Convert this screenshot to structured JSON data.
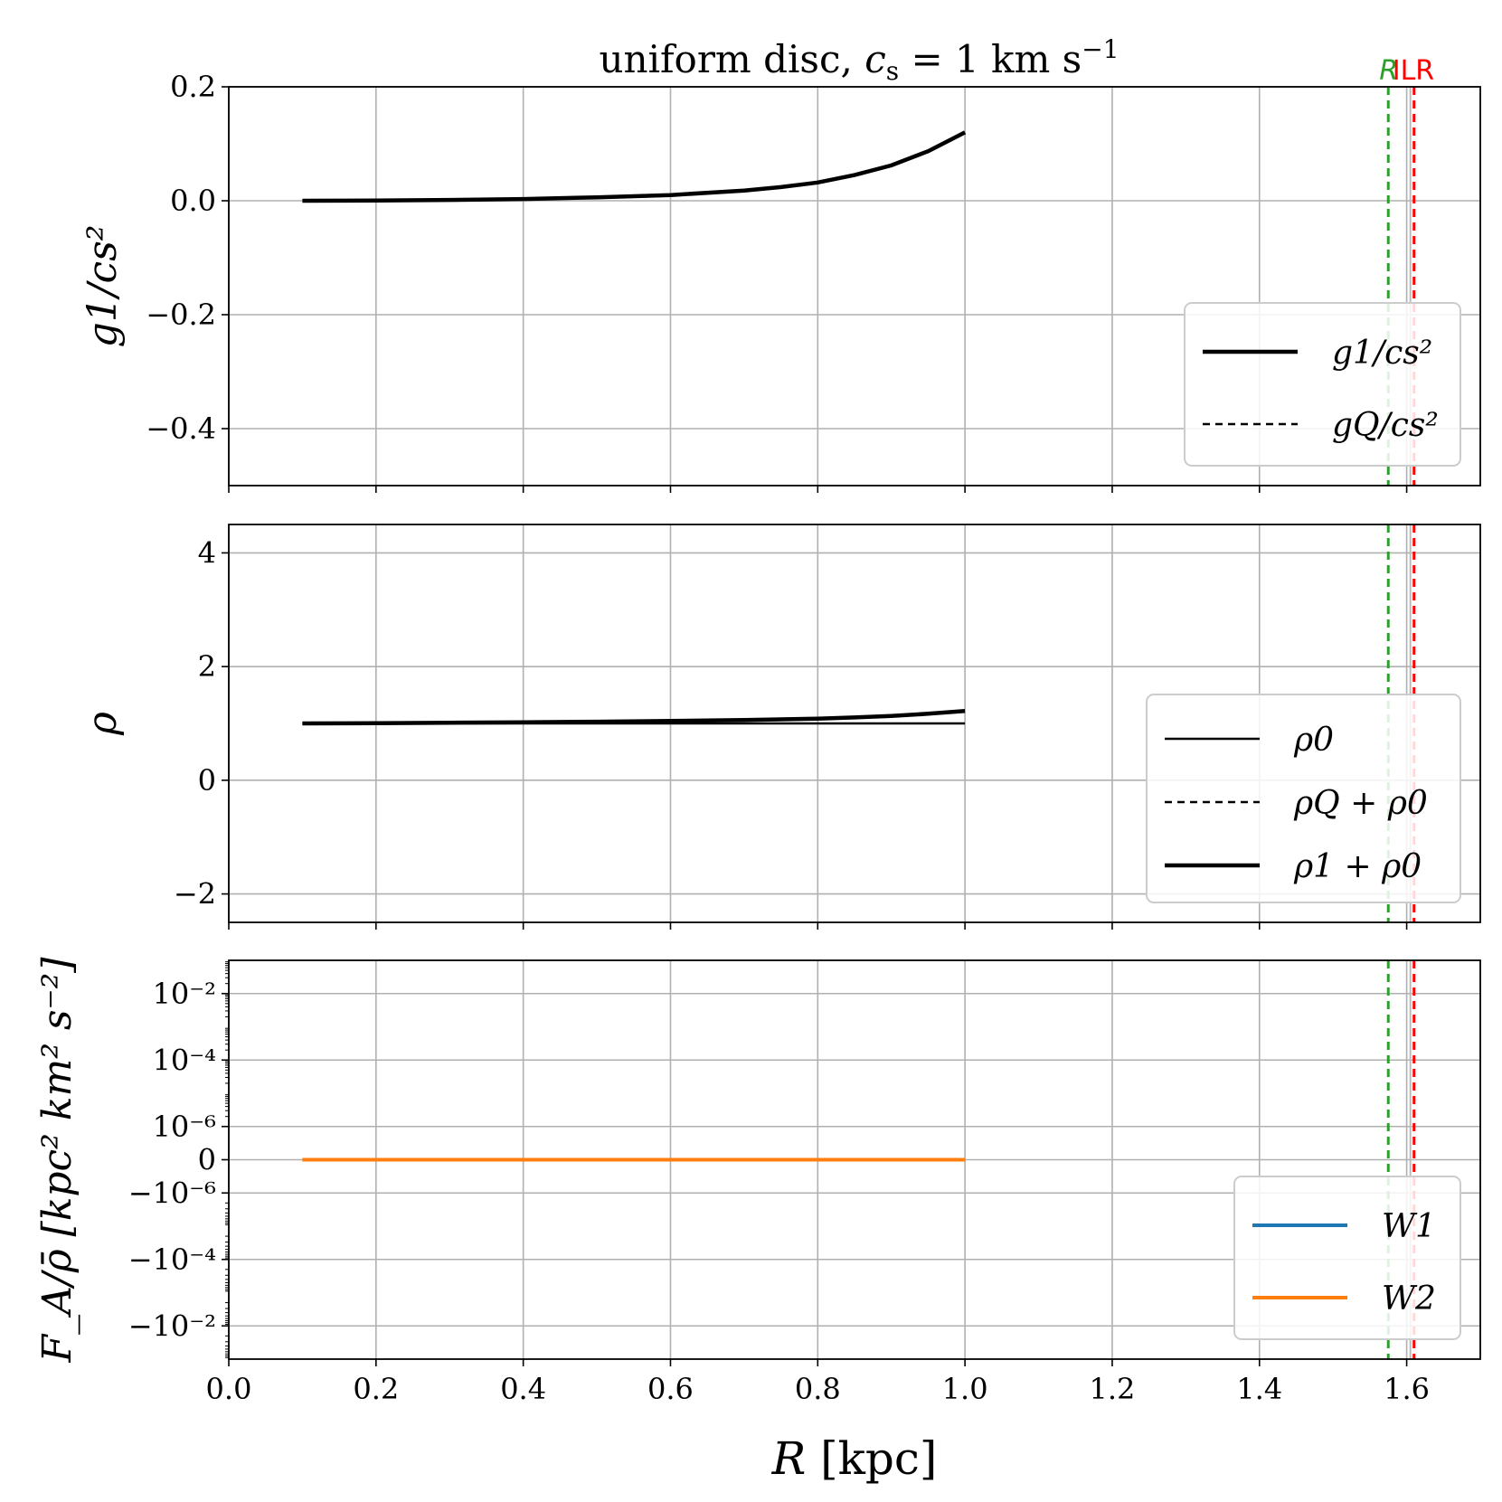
{
  "chart_data": {
    "type": "line",
    "title": "uniform disc, c_s = 1 km s^-1",
    "xlabel": "R [kpc]",
    "xlim": [
      0.0,
      1.7
    ],
    "xticks": [
      "0.0",
      "0.2",
      "0.4",
      "0.6",
      "0.8",
      "1.0",
      "1.2",
      "1.4",
      "1.6"
    ],
    "xtick_values": [
      0.0,
      0.2,
      0.4,
      0.6,
      0.8,
      1.0,
      1.2,
      1.4,
      1.6
    ],
    "resonances": [
      {
        "label": "R",
        "x": 1.575,
        "color": "#2ca02c",
        "style": "dashed"
      },
      {
        "label": "ILR",
        "x": 1.61,
        "color": "#ff0000",
        "style": "dashed"
      },
      {
        "label": "",
        "x": 1.605,
        "color": "#bbbbbb",
        "style": "solid"
      }
    ],
    "panels": [
      {
        "name": "g1",
        "ylabel": "g1/cs²",
        "ylim": [
          -0.5,
          0.2
        ],
        "yticks": [
          "0.2",
          "0.0",
          "−0.2",
          "−0.4"
        ],
        "ytick_values": [
          0.2,
          0.0,
          -0.2,
          -0.4
        ],
        "legend": {
          "position": "lower-right",
          "entries": [
            {
              "label": "g1/cs²",
              "style": "solid-thick"
            },
            {
              "label": "gQ/cs²",
              "style": "dashed"
            }
          ]
        },
        "series": [
          {
            "name": "g1/cs²",
            "style": "solid-thick",
            "color": "#000000",
            "x": [
              0.1,
              0.2,
              0.3,
              0.4,
              0.5,
              0.6,
              0.7,
              0.75,
              0.8,
              0.85,
              0.9,
              0.95,
              1.0
            ],
            "y": [
              0.0,
              0.0005,
              0.0015,
              0.003,
              0.006,
              0.01,
              0.018,
              0.024,
              0.032,
              0.045,
              0.062,
              0.087,
              0.12
            ]
          }
        ]
      },
      {
        "name": "rho",
        "ylabel": "ρ",
        "ylim": [
          -2.5,
          4.5
        ],
        "yticks": [
          "4",
          "2",
          "0",
          "−2"
        ],
        "ytick_values": [
          4,
          2,
          0,
          -2
        ],
        "legend": {
          "position": "lower-right",
          "entries": [
            {
              "label": "ρ0",
              "style": "solid"
            },
            {
              "label": "ρQ + ρ0",
              "style": "dashed"
            },
            {
              "label": "ρ1 + ρ0",
              "style": "solid-thick"
            }
          ]
        },
        "series": [
          {
            "name": "ρ0",
            "style": "solid",
            "color": "#000000",
            "x": [
              0.1,
              1.0
            ],
            "y": [
              1.0,
              1.0
            ]
          },
          {
            "name": "ρ1 + ρ0",
            "style": "solid-thick",
            "color": "#000000",
            "x": [
              0.1,
              0.2,
              0.3,
              0.4,
              0.5,
              0.6,
              0.7,
              0.8,
              0.85,
              0.9,
              0.95,
              1.0
            ],
            "y": [
              1.0,
              1.005,
              1.012,
              1.02,
              1.03,
              1.043,
              1.06,
              1.085,
              1.105,
              1.13,
              1.17,
              1.22
            ]
          }
        ]
      },
      {
        "name": "flux",
        "ylabel": "F_A/ρ̄  [kpc² km² s⁻²]",
        "yscale": "symlog",
        "yticks": [
          "10⁻²",
          "10⁻⁴",
          "10⁻⁶",
          "0",
          "−10⁻⁶",
          "−10⁻⁴",
          "−10⁻²"
        ],
        "ytick_values": [
          0.01,
          0.0001,
          1e-06,
          0,
          -1e-06,
          -0.0001,
          -0.01
        ],
        "legend": {
          "position": "lower-right",
          "entries": [
            {
              "label": "W1",
              "style": "solid",
              "color": "#1f77b4"
            },
            {
              "label": "W2",
              "style": "solid",
              "color": "#ff7f0e"
            }
          ]
        },
        "series": [
          {
            "name": "W1",
            "color": "#1f77b4",
            "x": [
              0.1,
              1.0
            ],
            "y": [
              0,
              0
            ]
          },
          {
            "name": "W2",
            "color": "#ff7f0e",
            "x": [
              0.1,
              1.0
            ],
            "y": [
              0,
              0
            ]
          }
        ]
      }
    ]
  }
}
